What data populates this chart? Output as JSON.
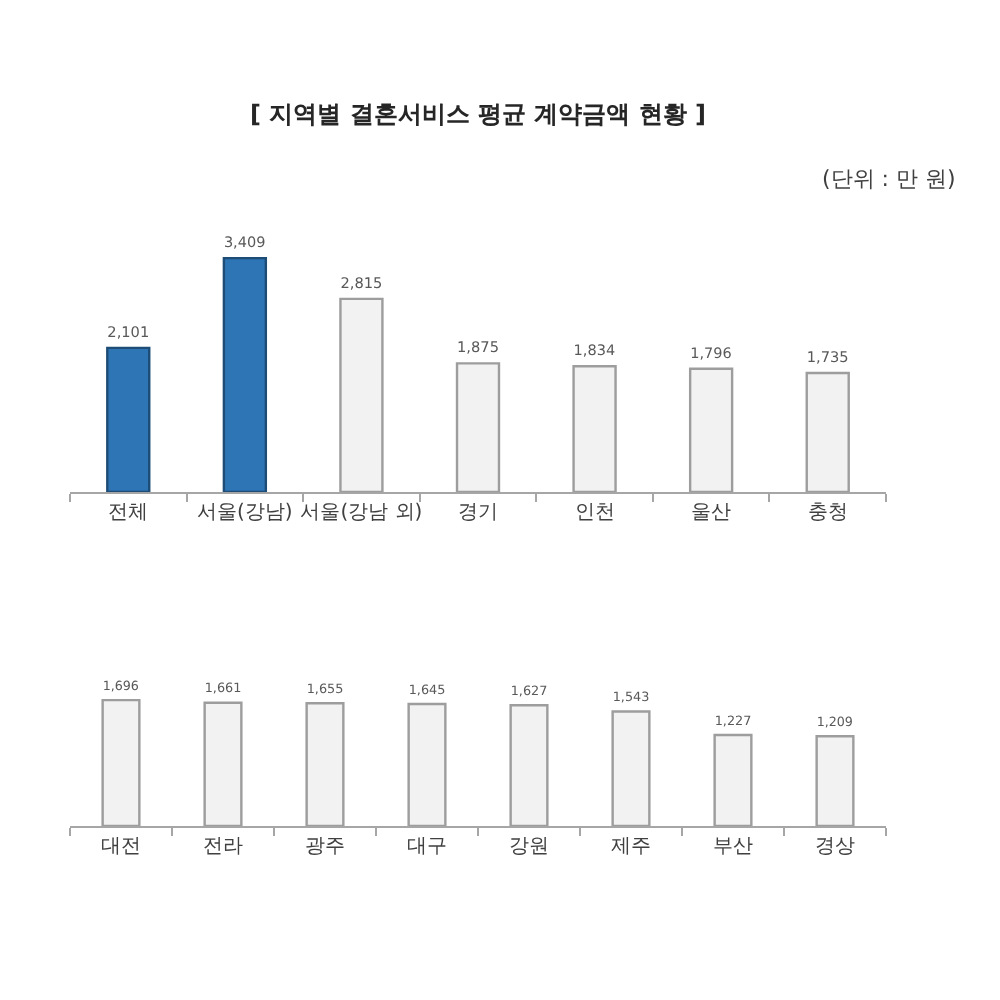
{
  "chart_data": [
    {
      "type": "bar",
      "title": "[ 지역별 결혼서비스 평균 계약금액 현황 ]",
      "annotations": [
        "(단위 : 만 원)"
      ],
      "categories": [
        "전체",
        "서울(강남)",
        "서울(강남 외)",
        "경기",
        "인천",
        "울산",
        "충청"
      ],
      "values": [
        2101,
        3409,
        2815,
        1875,
        1834,
        1796,
        1735
      ],
      "value_labels": [
        "2,101",
        "3,409",
        "2,815",
        "1,875",
        "1,834",
        "1,796",
        "1,735"
      ],
      "colors": [
        "#2e75b6",
        "#2e75b6",
        "#f2f2f2",
        "#f2f2f2",
        "#f2f2f2",
        "#f2f2f2",
        "#f2f2f2"
      ],
      "tick_labels": "x"
    },
    {
      "type": "bar",
      "categories": [
        "대전",
        "전라",
        "광주",
        "대구",
        "강원",
        "제주",
        "부산",
        "경상"
      ],
      "values": [
        1696,
        1661,
        1655,
        1645,
        1627,
        1543,
        1227,
        1209
      ],
      "value_labels": [
        "1,696",
        "1,661",
        "1,655",
        "1,645",
        "1,627",
        "1,543",
        "1,227",
        "1,209"
      ],
      "colors": [
        "#f2f2f2",
        "#f2f2f2",
        "#f2f2f2",
        "#f2f2f2",
        "#f2f2f2",
        "#f2f2f2",
        "#f2f2f2",
        "#f2f2f2"
      ],
      "tick_labels": "x"
    }
  ]
}
